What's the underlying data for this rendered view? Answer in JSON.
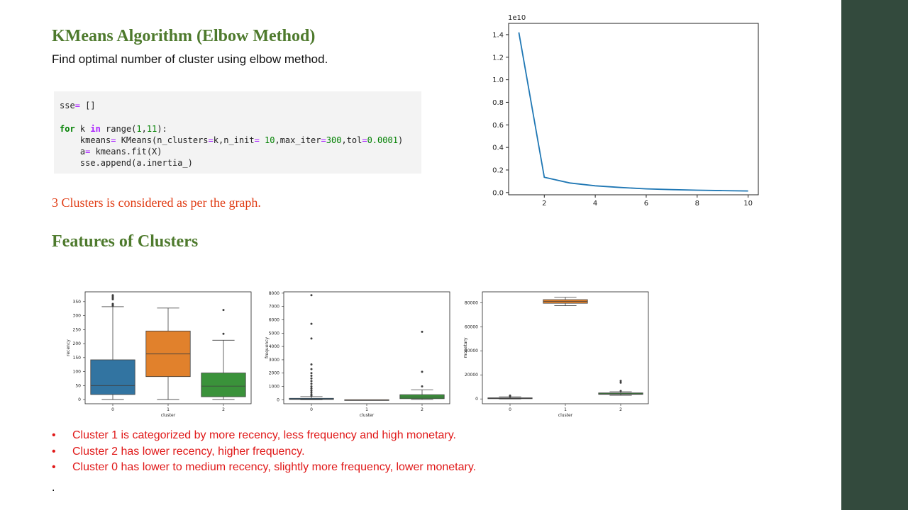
{
  "slide": {
    "title": "KMeans Algorithm (Elbow Method)",
    "subtitle": "Find optimal number of cluster using elbow method.",
    "code_lines": [
      "sse= []",
      "",
      "for k in range(1,11):",
      "    kmeans= KMeans(n_clusters=k,n_init= 10,max_iter=300,tol=0.0001)",
      "    a= kmeans.fit(X)",
      "    sse.append(a.inertia_)"
    ],
    "note": "3 Clusters is considered as per the graph.",
    "section_heading": "Features of Clusters",
    "bullet_marker": "•",
    "bullets": [
      "Cluster 1 is categorized by more recency, less frequency and high monetary.",
      "Cluster 2 has lower recency, higher frequency.",
      "Cluster 0 has lower to medium recency, slightly more frequency, lower monetary."
    ],
    "trailing_text": ".",
    "colors": {
      "title": "#4e7a2d",
      "note": "#e03c14",
      "bullets": "#e01818",
      "sidebar": "#334a3d"
    }
  },
  "chart_data": [
    {
      "type": "line",
      "title": "",
      "xlabel": "",
      "ylabel": "",
      "y_offset_text": "1e10",
      "x": [
        1,
        2,
        3,
        4,
        5,
        6,
        7,
        8,
        9,
        10
      ],
      "y": [
        1.42,
        0.135,
        0.085,
        0.06,
        0.045,
        0.033,
        0.026,
        0.021,
        0.017,
        0.014
      ],
      "xlim": [
        0.6,
        10.4
      ],
      "ylim": [
        -0.02,
        1.5
      ],
      "xticks": [
        2,
        4,
        6,
        8,
        10
      ],
      "yticks": [
        0.0,
        0.2,
        0.4,
        0.6,
        0.8,
        1.0,
        1.2,
        1.4
      ],
      "ytick_labels": [
        "0.0",
        "0.2",
        "0.4",
        "0.6",
        "0.8",
        "1.0",
        "1.2",
        "1.4"
      ],
      "line_color": "#1f77b4",
      "grid": false
    },
    {
      "type": "box",
      "xlabel": "cluster",
      "ylabel": "recency",
      "categories": [
        "0",
        "1",
        "2"
      ],
      "ylim": [
        -15,
        385
      ],
      "yticks": [
        0,
        50,
        100,
        150,
        200,
        250,
        300,
        350
      ],
      "boxes": [
        {
          "min": 0,
          "q1": 18,
          "median": 50,
          "q3": 142,
          "max": 332,
          "outliers": [
            335,
            338,
            342,
            358,
            362,
            366,
            370,
            373
          ]
        },
        {
          "min": 0,
          "q1": 82,
          "median": 163,
          "q3": 245,
          "max": 327,
          "outliers": []
        },
        {
          "min": 0,
          "q1": 10,
          "median": 48,
          "q3": 95,
          "max": 212,
          "outliers": [
            235,
            320
          ]
        }
      ],
      "colors": [
        "#3274a1",
        "#e1812c",
        "#3a923a"
      ]
    },
    {
      "type": "box",
      "xlabel": "cluster",
      "ylabel": "frequency",
      "categories": [
        "0",
        "1",
        "2"
      ],
      "ylim": [
        -300,
        8100
      ],
      "yticks": [
        0,
        1000,
        2000,
        3000,
        4000,
        5000,
        6000,
        7000,
        8000
      ],
      "boxes": [
        {
          "min": 0,
          "q1": 20,
          "median": 45,
          "q3": 110,
          "max": 240,
          "outliers": [
            300,
            420,
            560,
            700,
            850,
            1000,
            1200,
            1400,
            1600,
            1800,
            2000,
            2300,
            2650,
            4600,
            5700,
            7850
          ]
        },
        {
          "min": 1,
          "q1": 1,
          "median": 1,
          "q3": 1,
          "max": 1,
          "outliers": []
        },
        {
          "min": 20,
          "q1": 80,
          "median": 200,
          "q3": 380,
          "max": 750,
          "outliers": [
            1000,
            2100,
            5100
          ]
        }
      ],
      "colors": [
        "#3274a1",
        "#e1812c",
        "#3a923a"
      ]
    },
    {
      "type": "box",
      "xlabel": "cluster",
      "ylabel": "monetary",
      "categories": [
        "0",
        "1",
        "2"
      ],
      "ylim": [
        -4000,
        89000
      ],
      "yticks": [
        0,
        20000,
        40000,
        60000,
        80000
      ],
      "boxes": [
        {
          "min": 0,
          "q1": 200,
          "median": 500,
          "q3": 900,
          "max": 1800,
          "outliers": [
            2000,
            2400,
            2800
          ]
        },
        {
          "min": 77500,
          "q1": 79500,
          "median": 81000,
          "q3": 82500,
          "max": 84500,
          "outliers": []
        },
        {
          "min": 3000,
          "q1": 3800,
          "median": 4200,
          "q3": 5000,
          "max": 6000,
          "outliers": [
            6600,
            13500,
            15000
          ]
        }
      ],
      "colors": [
        "#3274a1",
        "#e1812c",
        "#3a923a"
      ]
    }
  ]
}
